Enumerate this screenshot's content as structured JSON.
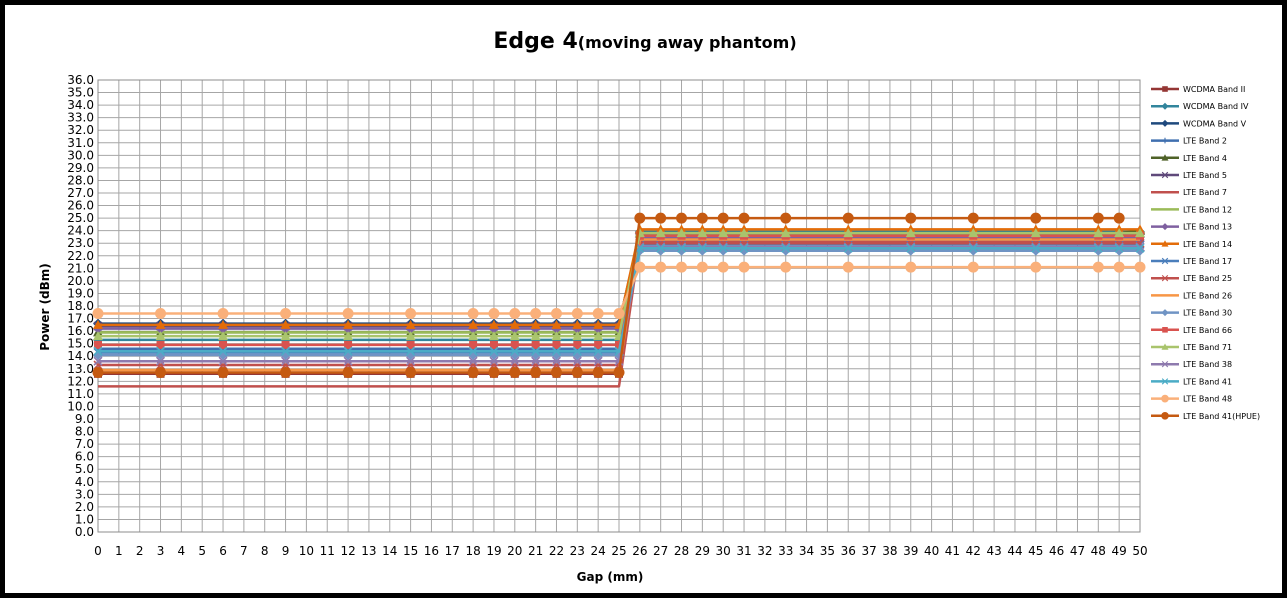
{
  "chart_data": {
    "type": "line",
    "title": "Edge 4",
    "title_suffix": "(moving away phantom)",
    "xlabel": "Gap (mm)",
    "ylabel": "Power (dBm)",
    "x_ticks": [
      "0",
      "1",
      "2",
      "3",
      "4",
      "5",
      "6",
      "7",
      "8",
      "9",
      "10",
      "11",
      "12",
      "13",
      "14",
      "15",
      "16",
      "17",
      "18",
      "19",
      "20",
      "21",
      "22",
      "23",
      "24",
      "25",
      "26",
      "27",
      "28",
      "29",
      "30",
      "31",
      "32",
      "33",
      "34",
      "35",
      "36",
      "37",
      "38",
      "39",
      "40",
      "41",
      "42",
      "43",
      "44",
      "45",
      "46",
      "47",
      "48",
      "49",
      "50"
    ],
    "ylim": [
      0,
      36
    ],
    "y_step": 1,
    "grid": true,
    "legend_position": "right",
    "x": [
      0,
      3,
      6,
      9,
      12,
      15,
      18,
      19,
      20,
      21,
      22,
      23,
      24,
      25,
      26,
      27,
      28,
      29,
      30,
      31,
      33,
      36,
      39,
      42,
      45,
      48,
      49,
      50
    ],
    "series": [
      {
        "name": "WCDMA Band II",
        "color": "#943634",
        "marker": "square",
        "values": [
          12.6,
          12.6,
          12.6,
          12.6,
          12.6,
          12.6,
          12.6,
          12.6,
          12.6,
          12.6,
          12.6,
          12.6,
          12.6,
          12.6,
          23.7,
          23.7,
          23.7,
          23.7,
          23.7,
          23.7,
          23.7,
          23.7,
          23.7,
          23.7,
          23.7,
          23.7,
          23.7,
          23.7
        ]
      },
      {
        "name": "WCDMA Band IV",
        "color": "#31859C",
        "marker": "diamond",
        "values": [
          15.3,
          15.3,
          15.3,
          15.3,
          15.3,
          15.3,
          15.3,
          15.3,
          15.3,
          15.3,
          15.3,
          15.3,
          15.3,
          15.3,
          23.9,
          23.9,
          23.9,
          23.9,
          23.9,
          23.9,
          23.9,
          23.9,
          23.9,
          23.9,
          23.9,
          23.9,
          23.9,
          23.9
        ]
      },
      {
        "name": "WCDMA Band V",
        "color": "#1F497D",
        "marker": "diamond",
        "values": [
          16.6,
          16.6,
          16.6,
          16.6,
          16.6,
          16.6,
          16.6,
          16.6,
          16.6,
          16.6,
          16.6,
          16.6,
          16.6,
          16.6,
          23.8,
          23.8,
          23.8,
          23.8,
          23.8,
          23.8,
          23.8,
          23.8,
          23.8,
          23.8,
          23.8,
          23.8,
          23.8,
          23.8
        ]
      },
      {
        "name": "LTE Band 2",
        "color": "#3F6FAF",
        "marker": "plus",
        "values": [
          14.6,
          14.6,
          14.6,
          14.6,
          14.6,
          14.6,
          14.6,
          14.6,
          14.6,
          14.6,
          14.6,
          14.6,
          14.6,
          14.6,
          23.2,
          23.2,
          23.2,
          23.2,
          23.2,
          23.2,
          23.2,
          23.2,
          23.2,
          23.2,
          23.2,
          23.2,
          23.2,
          23.2
        ]
      },
      {
        "name": "LTE Band 4",
        "color": "#4F6228",
        "marker": "triangle",
        "values": [
          15.9,
          15.9,
          15.9,
          15.9,
          15.9,
          15.9,
          15.9,
          15.9,
          15.9,
          15.9,
          15.9,
          15.9,
          15.9,
          15.9,
          23.8,
          23.8,
          23.8,
          23.8,
          23.8,
          23.8,
          23.8,
          23.8,
          23.8,
          23.8,
          23.8,
          23.8,
          23.8,
          24.0
        ]
      },
      {
        "name": "LTE Band 5",
        "color": "#5F497A",
        "marker": "x",
        "values": [
          16.4,
          16.4,
          16.4,
          16.4,
          16.4,
          16.4,
          16.4,
          16.4,
          16.4,
          16.4,
          16.4,
          16.4,
          16.4,
          16.4,
          23.4,
          23.4,
          23.4,
          23.4,
          23.4,
          23.4,
          23.4,
          23.4,
          23.4,
          23.4,
          23.4,
          23.4,
          23.4,
          23.4
        ]
      },
      {
        "name": "LTE Band 7",
        "color": "#C0504D",
        "marker": "none",
        "values": [
          11.6,
          11.6,
          11.6,
          11.6,
          11.6,
          11.6,
          11.6,
          11.6,
          11.6,
          11.6,
          11.6,
          11.6,
          11.6,
          11.6,
          23.1,
          23.1,
          23.1,
          23.1,
          23.1,
          23.1,
          23.1,
          23.1,
          23.1,
          23.1,
          23.1,
          23.1,
          23.1,
          23.1
        ]
      },
      {
        "name": "LTE Band 12",
        "color": "#9BBB59",
        "marker": "none",
        "values": [
          15.9,
          15.9,
          15.9,
          15.9,
          15.9,
          15.9,
          15.9,
          15.9,
          15.9,
          15.9,
          15.9,
          15.9,
          15.9,
          15.9,
          23.6,
          23.6,
          23.6,
          23.6,
          23.6,
          23.6,
          23.6,
          23.6,
          23.6,
          23.6,
          23.6,
          23.6,
          23.6,
          23.6
        ]
      },
      {
        "name": "LTE Band 13",
        "color": "#7F60A0",
        "marker": "diamond",
        "values": [
          16.2,
          16.2,
          16.2,
          16.2,
          16.2,
          16.2,
          16.2,
          16.2,
          16.2,
          16.2,
          16.2,
          16.2,
          16.2,
          16.2,
          23.5,
          23.5,
          23.5,
          23.5,
          23.5,
          23.5,
          23.5,
          23.5,
          23.5,
          23.5,
          23.5,
          23.5,
          23.5,
          23.5
        ]
      },
      {
        "name": "LTE Band 14",
        "color": "#E36C09",
        "marker": "triangle",
        "values": [
          16.5,
          16.5,
          16.5,
          16.5,
          16.5,
          16.5,
          16.5,
          16.5,
          16.5,
          16.5,
          16.5,
          16.5,
          16.5,
          16.5,
          24.1,
          24.1,
          24.1,
          24.1,
          24.1,
          24.1,
          24.1,
          24.1,
          24.1,
          24.1,
          24.1,
          24.1,
          24.1,
          24.1
        ]
      },
      {
        "name": "LTE Band 17",
        "color": "#4A7EBB",
        "marker": "x",
        "values": [
          14.3,
          14.3,
          14.3,
          14.3,
          14.3,
          14.3,
          14.3,
          14.3,
          14.3,
          14.3,
          14.3,
          14.3,
          14.3,
          14.3,
          22.9,
          22.9,
          22.9,
          22.9,
          22.9,
          22.9,
          22.9,
          22.9,
          22.9,
          22.9,
          22.9,
          22.9,
          22.9,
          22.9
        ]
      },
      {
        "name": "LTE Band 25",
        "color": "#C0504D",
        "marker": "x",
        "values": [
          13.3,
          13.3,
          13.3,
          13.3,
          13.3,
          13.3,
          13.3,
          13.3,
          13.3,
          13.3,
          13.3,
          13.3,
          13.3,
          13.3,
          23.0,
          23.0,
          23.0,
          23.0,
          23.0,
          23.0,
          23.0,
          23.0,
          23.0,
          23.0,
          23.0,
          23.0,
          23.0,
          23.0
        ]
      },
      {
        "name": "LTE Band 26",
        "color": "#F79646",
        "marker": "none",
        "values": [
          12.9,
          12.9,
          12.9,
          12.9,
          12.9,
          12.9,
          12.9,
          12.9,
          12.9,
          12.9,
          12.9,
          12.9,
          12.9,
          12.9,
          23.3,
          23.3,
          23.3,
          23.3,
          23.3,
          23.3,
          23.3,
          23.3,
          23.3,
          23.3,
          23.3,
          23.3,
          23.3,
          23.3
        ]
      },
      {
        "name": "LTE Band 30",
        "color": "#7094C4",
        "marker": "diamond",
        "values": [
          14.1,
          14.1,
          14.1,
          14.1,
          14.1,
          14.1,
          14.1,
          14.1,
          14.1,
          14.1,
          14.1,
          14.1,
          14.1,
          14.1,
          22.4,
          22.4,
          22.4,
          22.4,
          22.4,
          22.4,
          22.4,
          22.4,
          22.4,
          22.4,
          22.4,
          22.4,
          22.4,
          22.4
        ]
      },
      {
        "name": "LTE Band 66",
        "color": "#D9534F",
        "marker": "square",
        "values": [
          14.9,
          14.9,
          14.9,
          14.9,
          14.9,
          14.9,
          14.9,
          14.9,
          14.9,
          14.9,
          14.9,
          14.9,
          14.9,
          14.9,
          23.6,
          23.6,
          23.6,
          23.6,
          23.6,
          23.6,
          23.6,
          23.6,
          23.6,
          23.6,
          23.6,
          23.6,
          23.6,
          23.6
        ]
      },
      {
        "name": "LTE Band 71",
        "color": "#A9C46C",
        "marker": "triangle",
        "values": [
          15.6,
          15.6,
          15.6,
          15.6,
          15.6,
          15.6,
          15.6,
          15.6,
          15.6,
          15.6,
          15.6,
          15.6,
          15.6,
          15.6,
          23.8,
          23.8,
          23.8,
          23.8,
          23.8,
          23.8,
          23.8,
          23.8,
          23.8,
          23.8,
          23.8,
          23.8,
          23.8,
          23.8
        ]
      },
      {
        "name": "LTE Band 38",
        "color": "#8E7AAE",
        "marker": "x",
        "values": [
          13.6,
          13.6,
          13.6,
          13.6,
          13.6,
          13.6,
          13.6,
          13.6,
          13.6,
          13.6,
          13.6,
          13.6,
          13.6,
          13.6,
          22.7,
          22.7,
          22.7,
          22.7,
          22.7,
          22.7,
          22.7,
          22.7,
          22.7,
          22.7,
          22.7,
          22.7,
          22.7,
          22.7
        ]
      },
      {
        "name": "LTE Band 41",
        "color": "#4BACC6",
        "marker": "x",
        "values": [
          14.4,
          14.4,
          14.4,
          14.4,
          14.4,
          14.4,
          14.4,
          14.4,
          14.4,
          14.4,
          14.4,
          14.4,
          14.4,
          14.4,
          22.6,
          22.6,
          22.6,
          22.6,
          22.6,
          22.6,
          22.6,
          22.6,
          22.6,
          22.6,
          22.6,
          22.6,
          22.6,
          22.6
        ]
      },
      {
        "name": "LTE Band 48",
        "color": "#FAB07A",
        "marker": "circle",
        "values": [
          17.4,
          17.4,
          17.4,
          17.4,
          17.4,
          17.4,
          17.4,
          17.4,
          17.4,
          17.4,
          17.4,
          17.4,
          17.4,
          17.4,
          21.1,
          21.1,
          21.1,
          21.1,
          21.1,
          21.1,
          21.1,
          21.1,
          21.1,
          21.1,
          21.1,
          21.1,
          21.1,
          21.1
        ]
      },
      {
        "name": "LTE Band 41(HPUE)",
        "color": "#C55A11",
        "marker": "circle",
        "values": [
          12.7,
          12.7,
          12.7,
          12.7,
          12.7,
          12.7,
          12.7,
          12.7,
          12.7,
          12.7,
          12.7,
          12.7,
          12.7,
          12.7,
          25.0,
          25.0,
          25.0,
          25.0,
          25.0,
          25.0,
          25.0,
          25.0,
          25.0,
          25.0,
          25.0,
          25.0,
          25.0,
          null
        ]
      }
    ]
  }
}
